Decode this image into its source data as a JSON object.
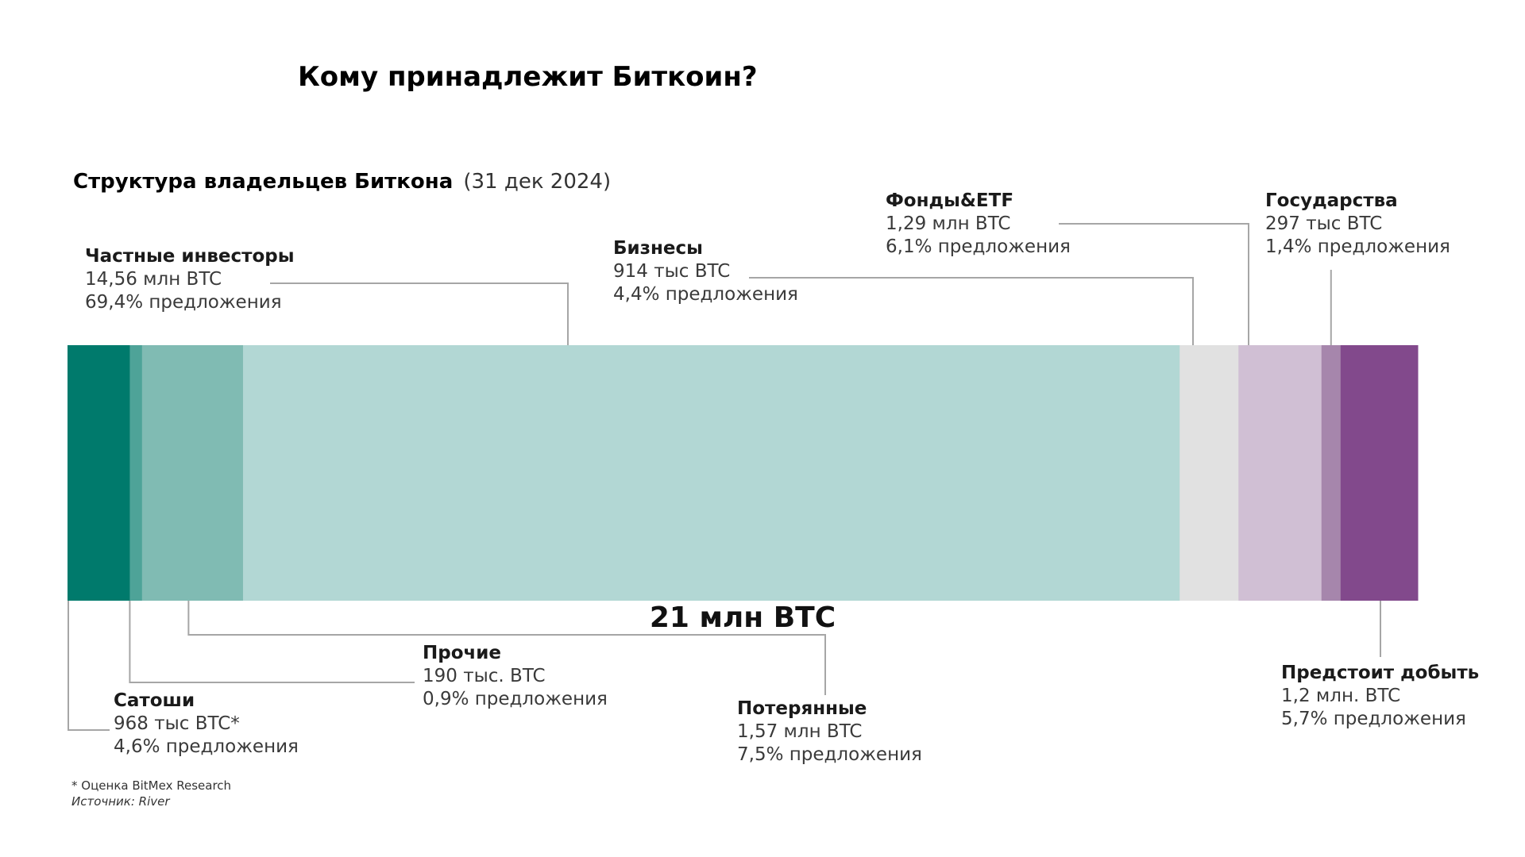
{
  "header": {
    "title": "Кому принадлежит Биткоин?",
    "subtitle_bold": "Структура владельцев Биткона",
    "subtitle_date": "(31 дек 2024)"
  },
  "total_label": "21 млн BTC",
  "footnotes": {
    "note": "* Оценка BitMex Research",
    "source": "Источник: River"
  },
  "chart_data": {
    "type": "bar",
    "orientation": "horizontal-stacked",
    "total_btc": 21000000,
    "segments": [
      {
        "key": "satoshi",
        "name": "Сатоши",
        "btc": 968000,
        "pct": 4.6,
        "color": "#007a6c",
        "line1": "968 тыс BTC*",
        "line2": "4,6% предложения"
      },
      {
        "key": "other",
        "name": "Прочие",
        "btc": 190000,
        "pct": 0.9,
        "color": "#4ea398",
        "line1": "190 тыс. BTC",
        "line2": "0,9% предложения"
      },
      {
        "key": "lost",
        "name": "Потерянные",
        "btc": 1570000,
        "pct": 7.5,
        "color": "#80bbb3",
        "line1": "1,57 млн BTC",
        "line2": "7,5% предложения"
      },
      {
        "key": "private",
        "name": "Частные инвесторы",
        "btc": 14560000,
        "pct": 69.4,
        "color": "#b2d7d4",
        "line1": "14,56 млн BTC",
        "line2": "69,4% предложения"
      },
      {
        "key": "business",
        "name": "Бизнесы",
        "btc": 914000,
        "pct": 4.4,
        "color": "#e1e1e1",
        "line1": "914 тыс BTC",
        "line2": "4,4% предложения"
      },
      {
        "key": "funds",
        "name": "Фонды&ETF",
        "btc": 1290000,
        "pct": 6.1,
        "color": "#d0bfd4",
        "line1": "1,29 млн BTC",
        "line2": "6,1% предложения"
      },
      {
        "key": "gov",
        "name": "Государства",
        "btc": 297000,
        "pct": 1.4,
        "color": "#a686ac",
        "line1": "297 тыс BTC",
        "line2": "1,4% предложения"
      },
      {
        "key": "tomine",
        "name": "Предстоит добыть",
        "btc": 1200000,
        "pct": 5.7,
        "color": "#82498c",
        "line1": "1,2 млн. BTC",
        "line2": "5,7% предложения"
      }
    ]
  }
}
